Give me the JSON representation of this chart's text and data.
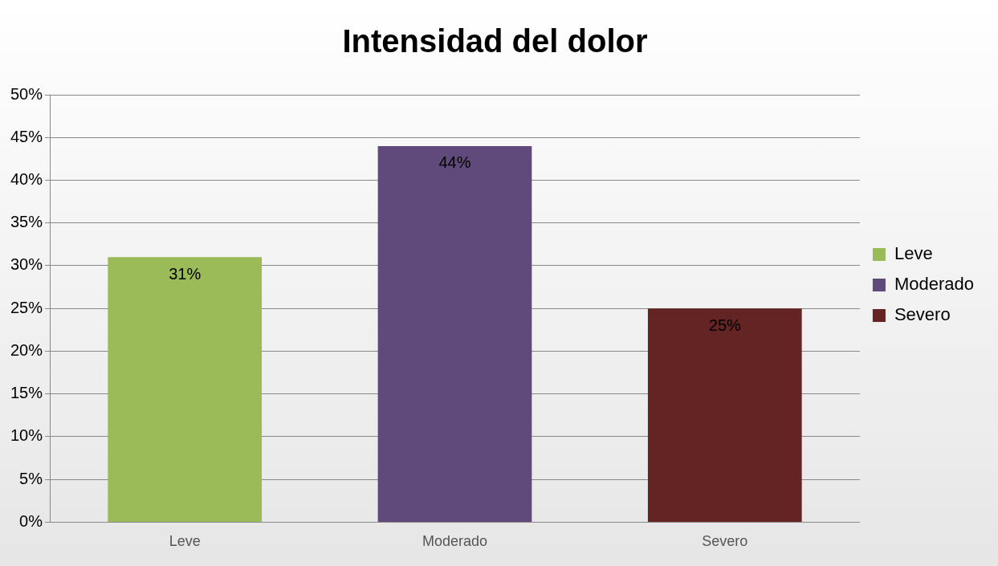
{
  "chart_data": {
    "type": "bar",
    "title": "Intensidad del dolor",
    "categories": [
      "Leve",
      "Moderado",
      "Severo"
    ],
    "series": [
      {
        "name": "Leve",
        "color": "#9bbb59",
        "values": [
          31,
          null,
          null
        ],
        "value_labels": [
          "31%",
          null,
          null
        ]
      },
      {
        "name": "Moderado",
        "color": "#604a7b",
        "values": [
          null,
          44,
          null
        ],
        "value_labels": [
          null,
          "44%",
          null
        ]
      },
      {
        "name": "Severo",
        "color": "#632423",
        "values": [
          null,
          null,
          25
        ],
        "value_labels": [
          null,
          null,
          "25%"
        ]
      }
    ],
    "ylim": [
      0,
      50
    ],
    "yticks": [
      {
        "value": 0,
        "label": "0%"
      },
      {
        "value": 5,
        "label": "5%"
      },
      {
        "value": 10,
        "label": "10%"
      },
      {
        "value": 15,
        "label": "15%"
      },
      {
        "value": 20,
        "label": "20%"
      },
      {
        "value": 25,
        "label": "25%"
      },
      {
        "value": 30,
        "label": "30%"
      },
      {
        "value": 35,
        "label": "35%"
      },
      {
        "value": 40,
        "label": "40%"
      },
      {
        "value": 45,
        "label": "45%"
      },
      {
        "value": 50,
        "label": "50%"
      }
    ],
    "grid": "y",
    "legend": "right"
  }
}
